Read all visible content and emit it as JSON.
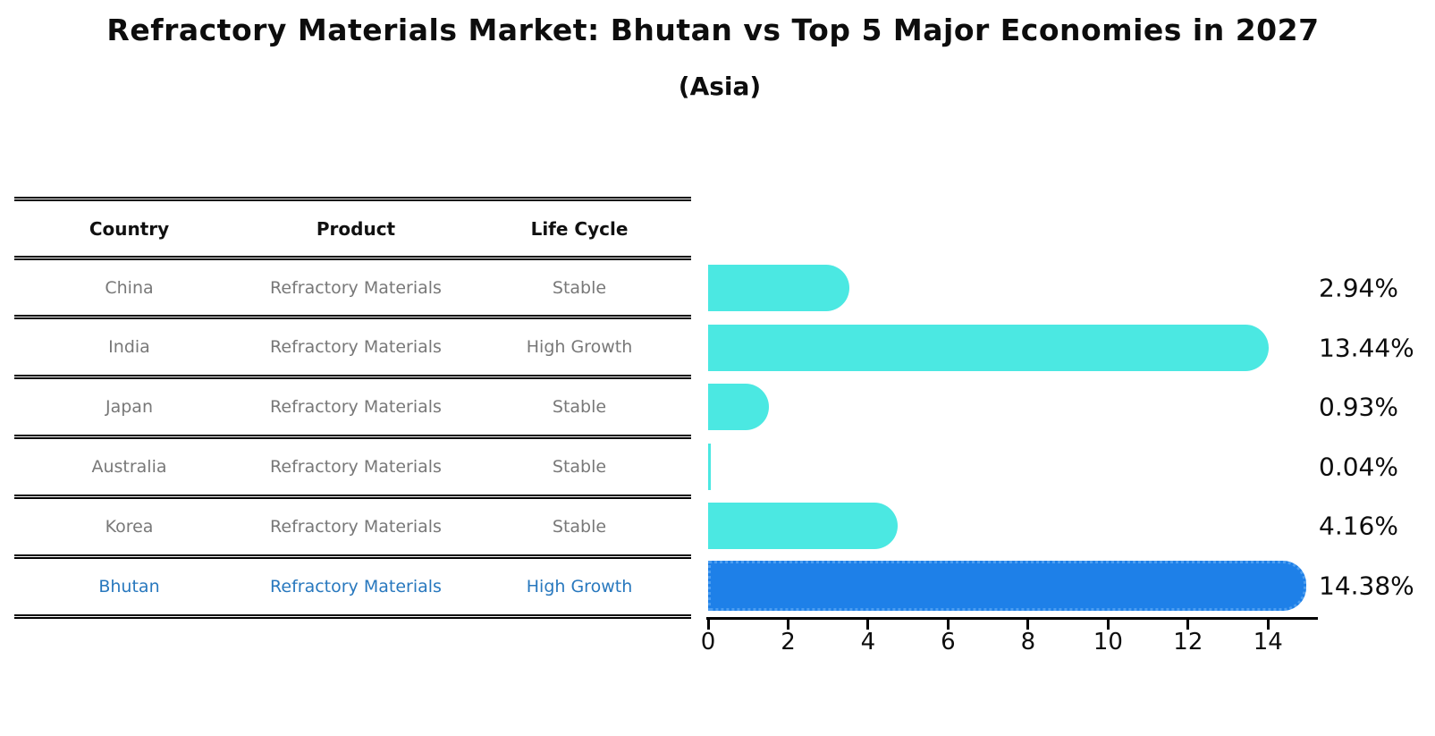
{
  "title": "Refractory Materials Market: Bhutan vs Top 5 Major Economies in 2027",
  "subtitle": "(Asia)",
  "table": {
    "headers": [
      "Country",
      "Product",
      "Life Cycle"
    ],
    "rows": [
      {
        "country": "China",
        "product": "Refractory Materials",
        "life_cycle": "Stable"
      },
      {
        "country": "India",
        "product": "Refractory Materials",
        "life_cycle": "High Growth"
      },
      {
        "country": "Japan",
        "product": "Refractory Materials",
        "life_cycle": "Stable"
      },
      {
        "country": "Australia",
        "product": "Refractory Materials",
        "life_cycle": "Stable"
      },
      {
        "country": "Korea",
        "product": "Refractory Materials",
        "life_cycle": "Stable"
      },
      {
        "country": "Bhutan",
        "product": "Refractory Materials",
        "life_cycle": "High Growth"
      }
    ],
    "highlight_row": "Bhutan"
  },
  "chart_data": {
    "type": "bar",
    "orientation": "horizontal",
    "title": "Refractory Materials Market: Bhutan vs Top 5 Major Economies in 2027",
    "subtitle": "(Asia)",
    "categories": [
      "China",
      "India",
      "Japan",
      "Australia",
      "Korea",
      "Bhutan"
    ],
    "values": [
      2.94,
      13.44,
      0.93,
      0.04,
      4.16,
      14.38
    ],
    "value_labels": [
      "2.94%",
      "13.44%",
      "0.93%",
      "0.04%",
      "4.16%",
      "14.38%"
    ],
    "xticks": [
      0,
      2,
      4,
      6,
      8,
      10,
      12,
      14
    ],
    "xlim": [
      0,
      15.2
    ],
    "grid": false,
    "legend": false,
    "bar_color": "#4BE8E2",
    "highlight_bar_color": "#1E80E8",
    "highlight_index": 5
  },
  "colors": {
    "row_text": "#787878",
    "highlight_text": "#2878BE",
    "header_text": "#111111",
    "axis": "#000000"
  }
}
